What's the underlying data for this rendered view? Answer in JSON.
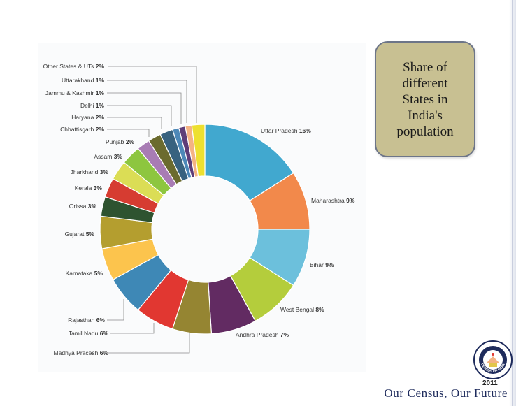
{
  "title": "Share of different States in India's population",
  "footer": "Our Census, Our Future",
  "logo": {
    "ring_text": "CENSUS OF INDIA",
    "year": "2011",
    "icon": "census-of-india-emblem"
  },
  "colors": {
    "title_box_bg": "#c8c092",
    "title_box_border": "#6d7588",
    "footer_text": "#1e2b5c"
  },
  "chart_data": {
    "type": "pie",
    "donut": true,
    "title": "",
    "slices": [
      {
        "label": "Uttar Pradesh",
        "pct_label": "16%",
        "value": 16,
        "color": "#41a8cf"
      },
      {
        "label": "Maharashtra",
        "pct_label": "9%",
        "value": 9,
        "color": "#f2894b"
      },
      {
        "label": "Bihar",
        "pct_label": "9%",
        "value": 9,
        "color": "#6cc0dc"
      },
      {
        "label": "West Bengal",
        "pct_label": "8%",
        "value": 8,
        "color": "#b4cd3c"
      },
      {
        "label": "Andhra Pradesh",
        "pct_label": "7%",
        "value": 7,
        "color": "#622b62"
      },
      {
        "label": "Madhya Pracesh",
        "pct_label": "6%",
        "value": 6,
        "color": "#958532"
      },
      {
        "label": "Tamil Nadu",
        "pct_label": "6%",
        "value": 6,
        "color": "#e13731"
      },
      {
        "label": "Rajasthan",
        "pct_label": "6%",
        "value": 6,
        "color": "#3e88b6"
      },
      {
        "label": "Karnataka",
        "pct_label": "5%",
        "value": 5,
        "color": "#fcc44d"
      },
      {
        "label": "Gujarat",
        "pct_label": "5%",
        "value": 5,
        "color": "#b49e2f"
      },
      {
        "label": "Orissa",
        "pct_label": "3%",
        "value": 3,
        "color": "#2e5330"
      },
      {
        "label": "Kerala",
        "pct_label": "3%",
        "value": 3,
        "color": "#d63c31"
      },
      {
        "label": "Jharkhand",
        "pct_label": "3%",
        "value": 3,
        "color": "#dbdd55"
      },
      {
        "label": "Assam",
        "pct_label": "3%",
        "value": 3,
        "color": "#8dc63f"
      },
      {
        "label": "Punjab",
        "pct_label": "2%",
        "value": 2,
        "color": "#a87cb4"
      },
      {
        "label": "Chhattisgarh",
        "pct_label": "2%",
        "value": 2,
        "color": "#6b6b2f"
      },
      {
        "label": "Haryana",
        "pct_label": "2%",
        "value": 2,
        "color": "#38627f"
      },
      {
        "label": "Delhi",
        "pct_label": "1%",
        "value": 1,
        "color": "#4d88b8"
      },
      {
        "label": "Jammu & Kashmir",
        "pct_label": "1%",
        "value": 1,
        "color": "#5e3d78"
      },
      {
        "label": "Uttarakhand",
        "pct_label": "1%",
        "value": 1,
        "color": "#f4b383"
      },
      {
        "label": "Other States & UTs",
        "pct_label": "2%",
        "value": 2,
        "color": "#ede030"
      }
    ]
  }
}
